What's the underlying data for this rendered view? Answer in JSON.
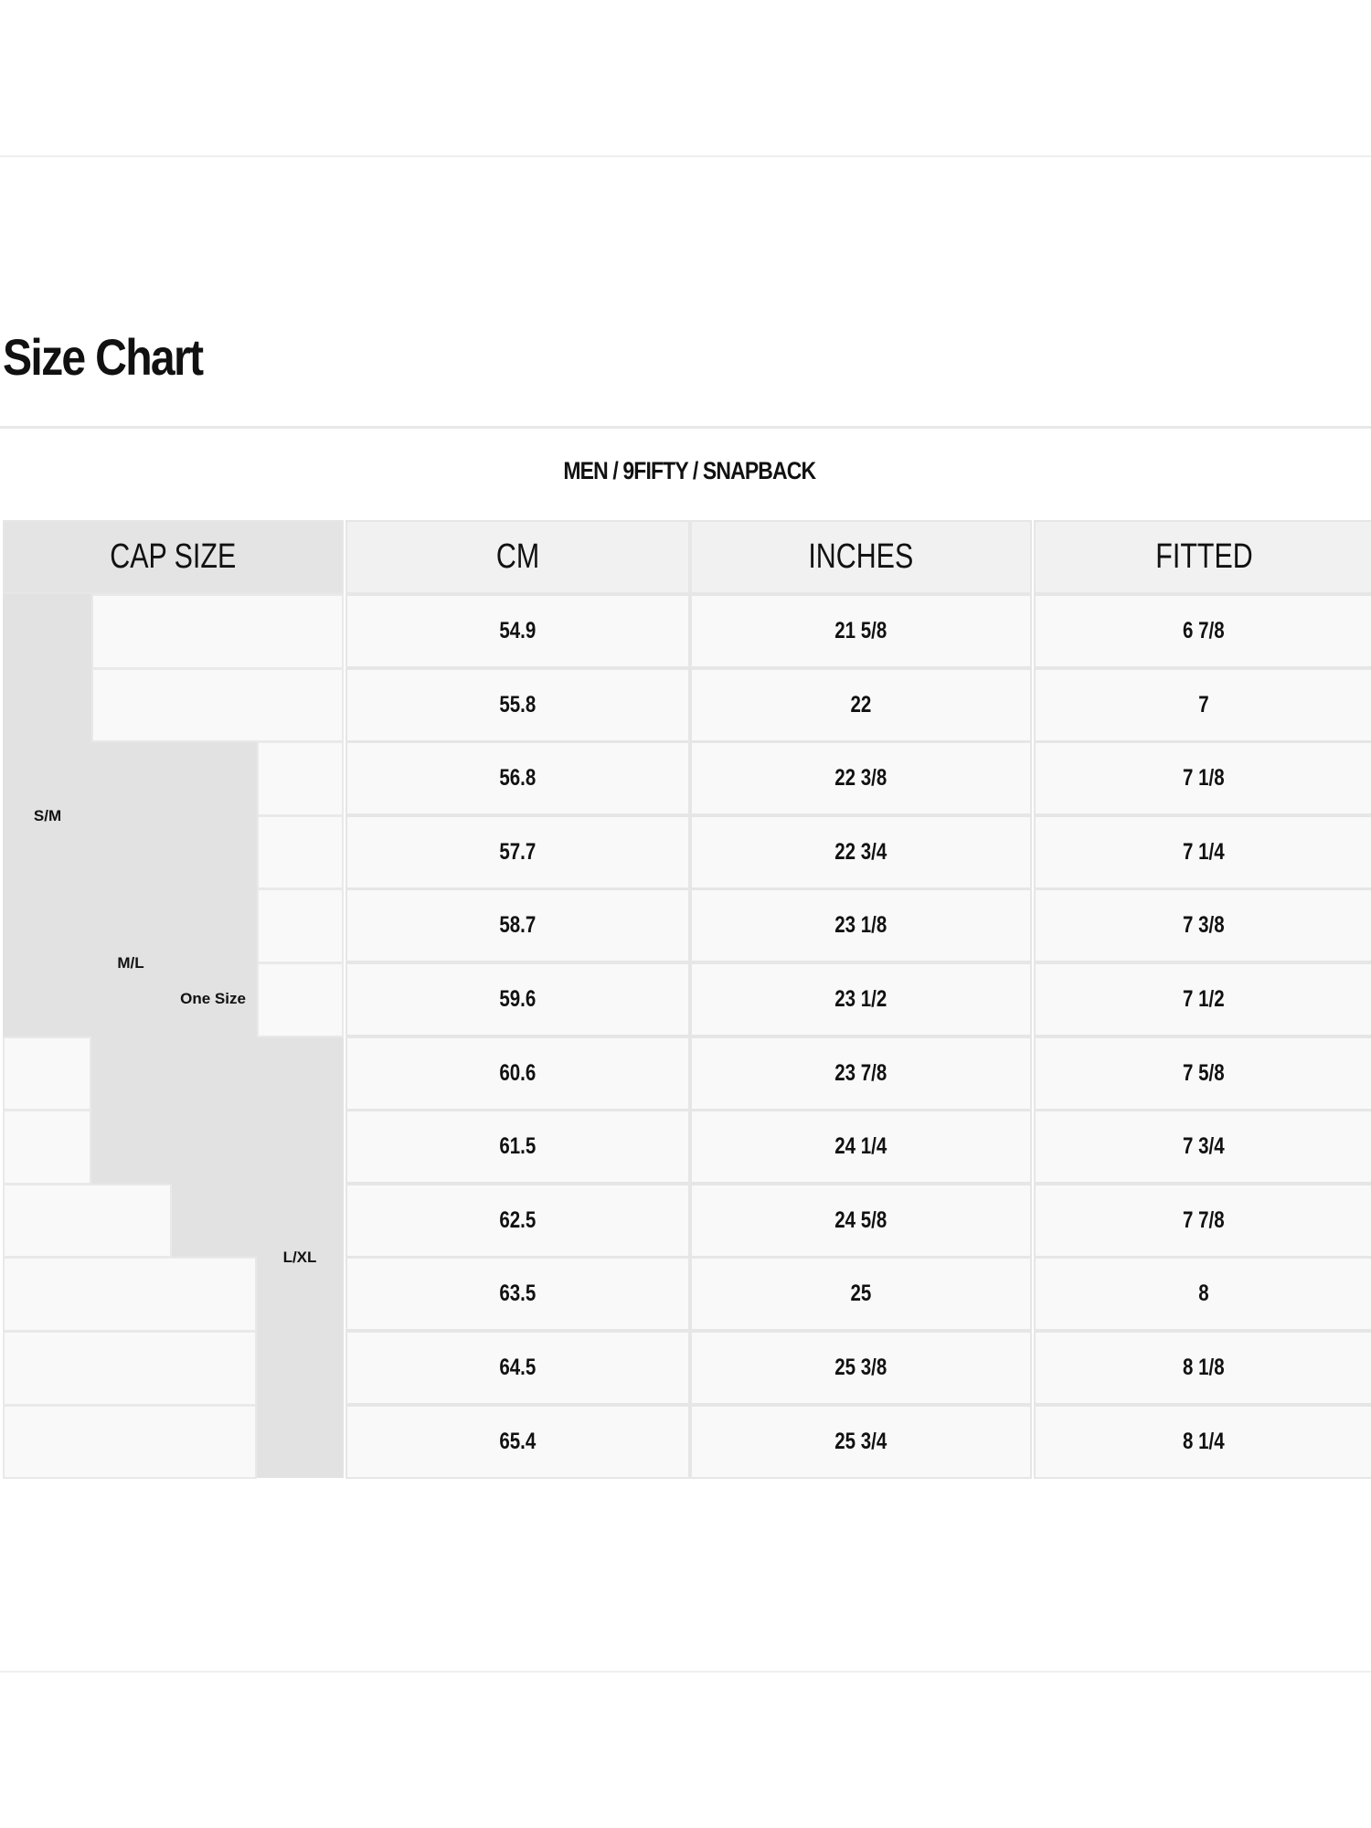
{
  "title": "Size Chart",
  "subtitle": "MEN / 9FIFTY / SNAPBACK",
  "table": {
    "headers": [
      "CAP SIZE",
      "CM",
      "INCHES",
      "FITTED"
    ],
    "cap_size_labels": [
      "S/M",
      "M/L",
      "One Size",
      "L/XL"
    ],
    "rows": [
      {
        "cm": "54.9",
        "inches": "21 5/8",
        "fitted": "6 7/8"
      },
      {
        "cm": "55.8",
        "inches": "22",
        "fitted": "7"
      },
      {
        "cm": "56.8",
        "inches": "22 3/8",
        "fitted": "7 1/8"
      },
      {
        "cm": "57.7",
        "inches": "22 3/4",
        "fitted": "7 1/4"
      },
      {
        "cm": "58.7",
        "inches": "23 1/8",
        "fitted": "7 3/8"
      },
      {
        "cm": "59.6",
        "inches": "23 1/2",
        "fitted": "7 1/2"
      },
      {
        "cm": "60.6",
        "inches": "23 7/8",
        "fitted": "7 5/8"
      },
      {
        "cm": "61.5",
        "inches": "24 1/4",
        "fitted": "7 3/4"
      },
      {
        "cm": "62.5",
        "inches": "24 5/8",
        "fitted": "7 7/8"
      },
      {
        "cm": "63.5",
        "inches": "25",
        "fitted": "8"
      },
      {
        "cm": "64.5",
        "inches": "25 3/8",
        "fitted": "8 1/8"
      },
      {
        "cm": "65.4",
        "inches": "25 3/4",
        "fitted": "8 1/4"
      }
    ]
  },
  "colors": {
    "size_band": "#e2e2e2",
    "cell": "#f9f9f9",
    "header": "#f1f1f1"
  }
}
